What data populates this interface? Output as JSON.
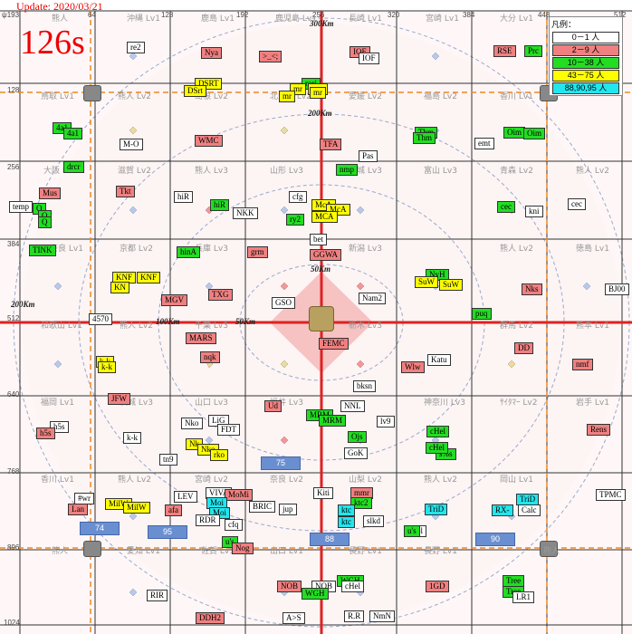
{
  "header": {
    "update": "Update: 2020/03/21",
    "counter": "126s"
  },
  "legend": {
    "title": "凡例：",
    "rows": [
      {
        "text": "0－1 人",
        "lv": "white"
      },
      {
        "text": "2－9 人",
        "lv": "red"
      },
      {
        "text": "10－38 人",
        "lv": "green"
      },
      {
        "text": "43－75 人",
        "lv": "yellow"
      },
      {
        "text": "88,90,95 人",
        "lv": "cyan"
      }
    ]
  },
  "colors": {
    "grid": "#333333",
    "axis": "#dd2222",
    "dashed": "#ee8822",
    "ring": "#99aacc",
    "center": "#f4b4b4"
  },
  "axis_ticks": {
    "top": [
      "ψ193",
      "64",
      "128",
      "192",
      "256",
      "320",
      "384",
      "448",
      "512"
    ],
    "left": [
      "128",
      "256",
      "384",
      "512",
      "640",
      "768",
      "896",
      "1024"
    ]
  },
  "rings": {
    "r300_top": "300Km",
    "r200_top": "200Km",
    "r200_left": "200Km",
    "r100_left": "100Km",
    "r50_top": "50Km",
    "r50_left": "50Km"
  },
  "cell_names": [
    "熊人",
    "沖縄 Lv1",
    "鹿島 Lv1",
    "鹿児島 Lv1",
    "長崎 Lv1",
    "宮崎 Lv1",
    "大分 Lv1",
    "鳥取 Lv1",
    "熊人 Lv2",
    "島根 Lv2",
    "北海道 Lv2",
    "愛媛 Lv2",
    "福島 Lv2",
    "香川 Lv1",
    "大阪 Lv1",
    "滋賀 Lv2",
    "熊人 Lv3",
    "山形 Lv3",
    "宮城 Lv3",
    "富山 Lv3",
    "青森 Lv2",
    "熊人 Lv2",
    "奈良 Lv1",
    "京都 Lv2",
    "兵庫 Lv3",
    "新潟 Lv3",
    "熊人 Lv2",
    "徳島 Lv1",
    "和歌山 Lv1",
    "熊人 Lv2",
    "千葉 Lv3",
    "栃木 Lv3",
    "群馬 Lv2",
    "熊本 Lv1",
    "福岡 Lv1",
    "茨城 Lv3",
    "山口 Lv3",
    "福井 Lv3",
    "神奈川 Lv3",
    "ｻｲﾀﾏｰ Lv2",
    "岩手 Lv1",
    "香川 Lv1",
    "熊人 Lv2",
    "宮崎 Lv2",
    "奈良 Lv2",
    "山梨 Lv2",
    "熊人 Lv2",
    "岡山 Lv1",
    "熊人",
    "愛知 Lv1",
    "佐賀 Lv1",
    "山口 Lv1",
    "長野 Lv1",
    "長野 Lv1",
    "熊人"
  ],
  "labels": [
    {
      "t": "re2",
      "lv": "white"
    },
    {
      "t": "Nya",
      "lv": "red"
    },
    {
      "t": ">_<;",
      "lv": "red"
    },
    {
      "t": "IOF",
      "lv": "red"
    },
    {
      "t": "IOF",
      "lv": "white"
    },
    {
      "t": "RSE",
      "lv": "red"
    },
    {
      "t": "Prc",
      "lv": "green"
    },
    {
      "t": "DSRT",
      "lv": "yellow"
    },
    {
      "t": "DSrt",
      "lv": "yellow"
    },
    {
      "t": "rori",
      "lv": "green"
    },
    {
      "t": "mr",
      "lv": "yellow"
    },
    {
      "t": "mrs",
      "lv": "yellow"
    },
    {
      "t": "mr",
      "lv": "yellow"
    },
    {
      "t": "mr",
      "lv": "yellow"
    },
    {
      "t": "4a1",
      "lv": "green"
    },
    {
      "t": "4a1",
      "lv": "green"
    },
    {
      "t": "M-O",
      "lv": "white"
    },
    {
      "t": "WMC",
      "lv": "red"
    },
    {
      "t": "TFA",
      "lv": "red"
    },
    {
      "t": "Thm",
      "lv": "green"
    },
    {
      "t": "Thm",
      "lv": "green"
    },
    {
      "t": "emt",
      "lv": "white"
    },
    {
      "t": "Oim",
      "lv": "green"
    },
    {
      "t": "Oim",
      "lv": "green"
    },
    {
      "t": "drcr",
      "lv": "green"
    },
    {
      "t": "Pas",
      "lv": "white"
    },
    {
      "t": "nmp",
      "lv": "green"
    },
    {
      "t": "Mus",
      "lv": "red"
    },
    {
      "t": "Tkt",
      "lv": "red"
    },
    {
      "t": "temp",
      "lv": "white"
    },
    {
      "t": "Q",
      "lv": "green"
    },
    {
      "t": "Q",
      "lv": "green"
    },
    {
      "t": "Q",
      "lv": "green"
    },
    {
      "t": "hiR",
      "lv": "white"
    },
    {
      "t": "hiR",
      "lv": "green"
    },
    {
      "t": "NKK",
      "lv": "white"
    },
    {
      "t": "cfg",
      "lv": "white"
    },
    {
      "t": "ry2",
      "lv": "green"
    },
    {
      "t": "McA",
      "lv": "yellow"
    },
    {
      "t": "McA",
      "lv": "yellow"
    },
    {
      "t": "MCA",
      "lv": "yellow"
    },
    {
      "t": "cec",
      "lv": "green"
    },
    {
      "t": "kni",
      "lv": "white"
    },
    {
      "t": "cec",
      "lv": "white"
    },
    {
      "t": "TINK",
      "lv": "green"
    },
    {
      "t": "hinA",
      "lv": "green"
    },
    {
      "t": "grm",
      "lv": "red"
    },
    {
      "t": "bet",
      "lv": "white"
    },
    {
      "t": "GGWA",
      "lv": "red"
    },
    {
      "t": "NyH",
      "lv": "green"
    },
    {
      "t": "SuW",
      "lv": "yellow"
    },
    {
      "t": "SuW",
      "lv": "yellow"
    },
    {
      "t": "Nks",
      "lv": "red"
    },
    {
      "t": "KNF",
      "lv": "yellow"
    },
    {
      "t": "KNF",
      "lv": "yellow"
    },
    {
      "t": "KN",
      "lv": "yellow"
    },
    {
      "t": "MGV",
      "lv": "red"
    },
    {
      "t": "TXG",
      "lv": "red"
    },
    {
      "t": "GSO",
      "lv": "white"
    },
    {
      "t": "Nam2",
      "lv": "white"
    },
    {
      "t": "BJ00",
      "lv": "white"
    },
    {
      "t": "puq",
      "lv": "green"
    },
    {
      "t": "4570",
      "lv": "white"
    },
    {
      "t": "MARS",
      "lv": "red"
    },
    {
      "t": "FEMC",
      "lv": "red"
    },
    {
      "t": "DD",
      "lv": "red"
    },
    {
      "t": "nqk",
      "lv": "red"
    },
    {
      "t": "Katu",
      "lv": "white"
    },
    {
      "t": "Wlw",
      "lv": "red"
    },
    {
      "t": "nmf",
      "lv": "red"
    },
    {
      "t": "k-k",
      "lv": "yellow"
    },
    {
      "t": "k-k",
      "lv": "yellow"
    },
    {
      "t": "bksn",
      "lv": "white"
    },
    {
      "t": "JFW",
      "lv": "red"
    },
    {
      "t": "Ud",
      "lv": "red"
    },
    {
      "t": "NNL",
      "lv": "white"
    },
    {
      "t": "MRM",
      "lv": "green"
    },
    {
      "t": "MRM",
      "lv": "green"
    },
    {
      "t": "lv9",
      "lv": "white"
    },
    {
      "t": "h5s",
      "lv": "white"
    },
    {
      "t": "h5s",
      "lv": "red"
    },
    {
      "t": "k-k",
      "lv": "white"
    },
    {
      "t": "Nko",
      "lv": "white"
    },
    {
      "t": "LiG",
      "lv": "white"
    },
    {
      "t": "FDT",
      "lv": "white"
    },
    {
      "t": "Ojs",
      "lv": "green"
    },
    {
      "t": "cHel",
      "lv": "green"
    },
    {
      "t": "Rens",
      "lv": "red"
    },
    {
      "t": "Nk",
      "lv": "yellow"
    },
    {
      "t": "Nko",
      "lv": "yellow"
    },
    {
      "t": "rko",
      "lv": "yellow"
    },
    {
      "t": "tn9",
      "lv": "white"
    },
    {
      "t": "GoK",
      "lv": "white"
    },
    {
      "t": "s%s",
      "lv": "green"
    },
    {
      "t": "cHel",
      "lv": "green"
    },
    {
      "t": "#wr",
      "lv": "white"
    },
    {
      "t": "Lan",
      "lv": "red"
    },
    {
      "t": "MilW",
      "lv": "yellow"
    },
    {
      "t": "MilW",
      "lv": "yellow"
    },
    {
      "t": "VIVA",
      "lv": "white"
    },
    {
      "t": "LEV",
      "lv": "white"
    },
    {
      "t": "MoMi",
      "lv": "red"
    },
    {
      "t": "Moi",
      "lv": "cyan"
    },
    {
      "t": "Moi",
      "lv": "cyan"
    },
    {
      "t": "BRIC",
      "lv": "white"
    },
    {
      "t": "Kiti",
      "lv": "white"
    },
    {
      "t": "mmr",
      "lv": "red"
    },
    {
      "t": "ktc2",
      "lv": "green"
    },
    {
      "t": "ktc",
      "lv": "cyan"
    },
    {
      "t": "ktc",
      "lv": "cyan"
    },
    {
      "t": "slkd",
      "lv": "white"
    },
    {
      "t": "cHel",
      "lv": "white"
    },
    {
      "t": "TriD",
      "lv": "cyan"
    },
    {
      "t": "TriD",
      "lv": "cyan"
    },
    {
      "t": "RX-",
      "lv": "cyan"
    },
    {
      "t": "Calc",
      "lv": "white"
    },
    {
      "t": "TPMC",
      "lv": "white"
    },
    {
      "t": "afa",
      "lv": "red"
    },
    {
      "t": "RDR",
      "lv": "white"
    },
    {
      "t": "cfq",
      "lv": "white"
    },
    {
      "t": "jup",
      "lv": "white"
    },
    {
      "t": "u's",
      "lv": "green"
    },
    {
      "t": "u's",
      "lv": "green"
    },
    {
      "t": "Nog",
      "lv": "red"
    },
    {
      "t": "RIR",
      "lv": "white"
    },
    {
      "t": "NOB",
      "lv": "red"
    },
    {
      "t": "NOB",
      "lv": "white"
    },
    {
      "t": "WGH",
      "lv": "green"
    },
    {
      "t": "WGH",
      "lv": "green"
    },
    {
      "t": "cHel",
      "lv": "white"
    },
    {
      "t": "1GD",
      "lv": "red"
    },
    {
      "t": "Tree",
      "lv": "green"
    },
    {
      "t": "Tree",
      "lv": "green"
    },
    {
      "t": "LR1",
      "lv": "white"
    },
    {
      "t": "DDH2",
      "lv": "red"
    },
    {
      "t": "A>S",
      "lv": "white"
    },
    {
      "t": "R.R",
      "lv": "white"
    },
    {
      "t": "NmN",
      "lv": "white"
    }
  ],
  "blue_boxes": [
    "75",
    "74",
    "95",
    "88",
    "90"
  ]
}
